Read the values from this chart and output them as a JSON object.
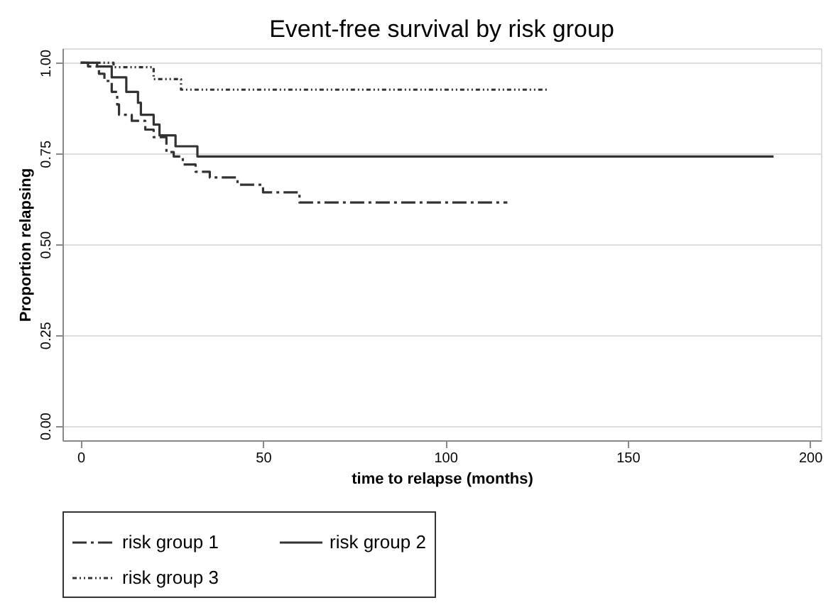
{
  "chart_data": {
    "type": "step",
    "title": "Event-free survival by risk group",
    "xlabel": "time to relapse (months)",
    "ylabel": "Proportion relapsing",
    "xlim": [
      -5,
      203
    ],
    "xticks": [
      0,
      50,
      100,
      150,
      200
    ],
    "ylim": [
      -0.04,
      1.04
    ],
    "yticks": [
      {
        "value": 0,
        "label": "0.00"
      },
      0.25,
      {
        "value": 0.5,
        "label": "0.50"
      },
      0.75,
      {
        "value": 1,
        "label": "1.00"
      }
    ],
    "grid": "y",
    "legend": "bottom",
    "marker": "none",
    "series": [
      {
        "name": "risk group 1",
        "color": "#333333",
        "line_style": "dashed",
        "x": [
          0,
          2,
          5,
          6.5,
          8.5,
          10,
          10.5,
          14,
          17.7,
          20,
          23.5,
          25.5,
          28,
          31.5,
          35.4,
          43,
          50,
          60,
          117
        ],
        "values": [
          1,
          0.99,
          0.97,
          0.95,
          0.92,
          0.885,
          0.857,
          0.84,
          0.816,
          0.795,
          0.754,
          0.742,
          0.72,
          0.7,
          0.684,
          0.664,
          0.643,
          0.615,
          0.615
        ]
      },
      {
        "name": "risk group 2",
        "color": "#333333",
        "line_style": "solid",
        "x": [
          0,
          4.5,
          8.5,
          12.5,
          15.7,
          16.5,
          20,
          21.6,
          26,
          32,
          190
        ],
        "values": [
          1,
          0.99,
          0.96,
          0.92,
          0.89,
          0.857,
          0.83,
          0.8,
          0.77,
          0.742,
          0.742
        ]
      },
      {
        "name": "risk group 3",
        "color": "#333333",
        "line_style": "dotted",
        "x": [
          0,
          9,
          20,
          27.5,
          128
        ],
        "values": [
          1,
          0.988,
          0.955,
          0.926,
          0.926
        ]
      }
    ]
  }
}
